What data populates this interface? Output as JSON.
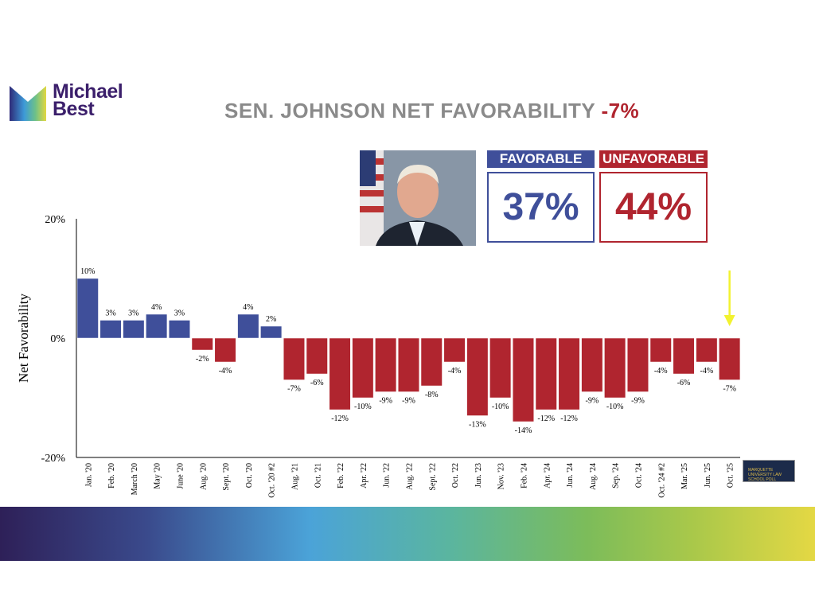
{
  "logo": {
    "line1": "Michael",
    "line2": "Best"
  },
  "title": {
    "text": "SEN. JOHNSON NET FAVORABILITY ",
    "value": "-7%"
  },
  "favorable": {
    "label": "FAVORABLE",
    "value": "37%"
  },
  "unfavorable": {
    "label": "UNFAVORABLE",
    "value": "44%"
  },
  "poll_logo": "MARQUETTE UNIVERSITY LAW SCHOOL POLL",
  "colors": {
    "positive": "#3f4f9a",
    "negative": "#b0252f",
    "arrow": "#f2f230"
  },
  "chart_data": {
    "type": "bar",
    "title": "SEN. JOHNSON NET FAVORABILITY",
    "ylabel": "Net  Favorability",
    "xlabel": "",
    "ylim": [
      -20,
      20
    ],
    "yticks": [
      20,
      0,
      -20
    ],
    "ytick_labels": [
      "20%",
      "0%",
      "-20%"
    ],
    "categories": [
      "Jan. '20",
      "Feb. '20",
      "March '20",
      "May '20",
      "June '20",
      "Aug. '20",
      "Sept. '20",
      "Oct. '20",
      "Oct. '20 #2",
      "Aug. '21",
      "Oct. '21",
      "Feb. '22",
      "Apr. '22",
      "Jun. '22",
      "Aug. '22",
      "Sept. '22",
      "Oct. '22",
      "Jun. '23",
      "Nov. '23",
      "Feb. '24",
      "Apr. '24",
      "Jun. '24",
      "Aug. '24",
      "Sep. '24",
      "Oct. '24",
      "Oct. '24 #2",
      "Mar. '25",
      "Jun. '25",
      "Oct. '25"
    ],
    "values": [
      10,
      3,
      3,
      4,
      3,
      -2,
      -4,
      4,
      2,
      -7,
      -6,
      -12,
      -10,
      -9,
      -9,
      -8,
      -4,
      -13,
      -10,
      -14,
      -12,
      -12,
      -9,
      -10,
      -9,
      -4,
      -6,
      -4,
      -7
    ],
    "annotation": "arrow pointing to Oct. '25"
  }
}
